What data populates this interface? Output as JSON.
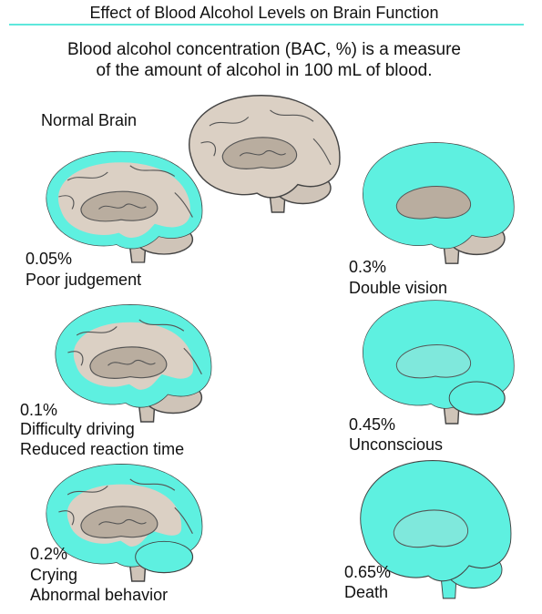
{
  "header": {
    "title": "Effect of Blood Alcohol Levels on Brain Function",
    "subtitle_lines": [
      "Blood alcohol concentration (BAC, %) is a measure",
      "of the amount of alcohol in 100 mL of blood."
    ]
  },
  "normal_brain": {
    "label": "Normal Brain"
  },
  "panels": [
    {
      "bac": "0.05%",
      "effects": [
        "Poor judgement"
      ]
    },
    {
      "bac": "0.3%",
      "effects": [
        "Double vision"
      ]
    },
    {
      "bac": "0.1%",
      "effects": [
        "Difficulty driving",
        "Reduced reaction time"
      ]
    },
    {
      "bac": "0.45%",
      "effects": [
        "Unconscious"
      ]
    },
    {
      "bac": "0.2%",
      "effects": [
        "Crying",
        "Abnormal behavior"
      ]
    },
    {
      "bac": "0.65%",
      "effects": [
        "Death"
      ]
    }
  ]
}
